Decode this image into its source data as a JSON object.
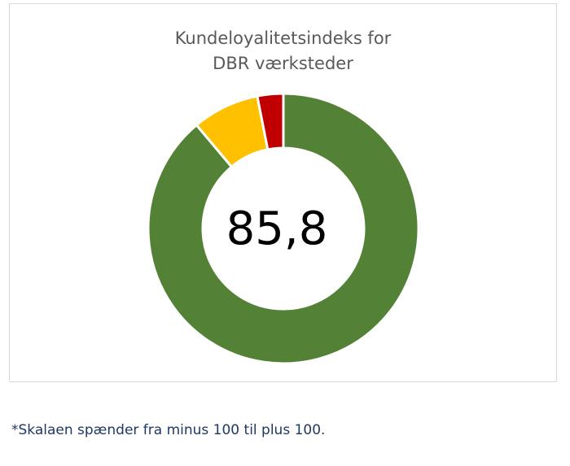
{
  "chart_data": {
    "type": "pie",
    "title_lines": [
      "Kundeloyalitetsindeks for",
      "DBR værksteder"
    ],
    "center_label": "85,8",
    "slices": [
      {
        "value": 88.9,
        "color": "#538135"
      },
      {
        "value": 8.0,
        "color": "#ffc000"
      },
      {
        "value": 3.1,
        "color": "#c00000"
      }
    ],
    "legend": "none"
  },
  "footnote": "*Skalaen spænder fra minus 100 til plus 100."
}
